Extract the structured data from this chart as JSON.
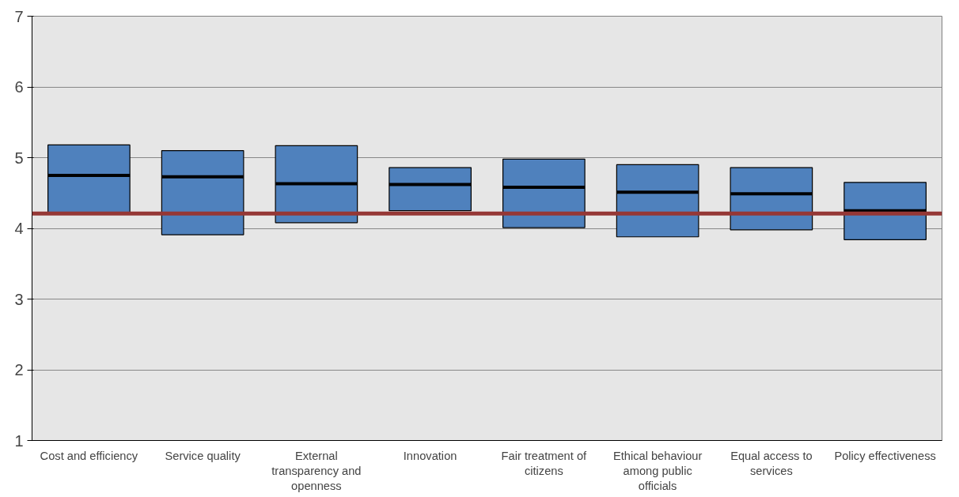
{
  "chart_data": {
    "type": "box",
    "categories": [
      "Cost and efficiency",
      "Service quality",
      "External transparency and openness",
      "Innovation",
      "Fair treatment of citizens",
      "Ethical behaviour among public officials",
      "Equal access to services",
      "Policy effectiveness"
    ],
    "boxes": [
      {
        "low": 4.22,
        "q1": 4.22,
        "median": 4.75,
        "q3": 5.18,
        "high": 5.18
      },
      {
        "low": 3.91,
        "q1": 3.91,
        "median": 4.73,
        "q3": 5.1,
        "high": 5.1
      },
      {
        "low": 4.08,
        "q1": 4.08,
        "median": 4.63,
        "q3": 5.17,
        "high": 5.17
      },
      {
        "low": 4.25,
        "q1": 4.25,
        "median": 4.62,
        "q3": 4.86,
        "high": 4.86
      },
      {
        "low": 4.01,
        "q1": 4.01,
        "median": 4.58,
        "q3": 4.98,
        "high": 4.98
      },
      {
        "low": 3.88,
        "q1": 3.88,
        "median": 4.51,
        "q3": 4.9,
        "high": 4.9
      },
      {
        "low": 3.98,
        "q1": 3.98,
        "median": 4.49,
        "q3": 4.86,
        "high": 4.86
      },
      {
        "low": 3.84,
        "q1": 3.84,
        "median": 4.25,
        "q3": 4.65,
        "high": 4.65
      }
    ],
    "color": "#4f81bd",
    "ylim": [
      1,
      7
    ],
    "yticks": [
      1,
      2,
      3,
      4,
      5,
      6,
      7
    ],
    "grid": "y",
    "ref_lines": [
      {
        "axis": "y",
        "value": 4.21,
        "label": null,
        "color": "#953735"
      }
    ]
  }
}
